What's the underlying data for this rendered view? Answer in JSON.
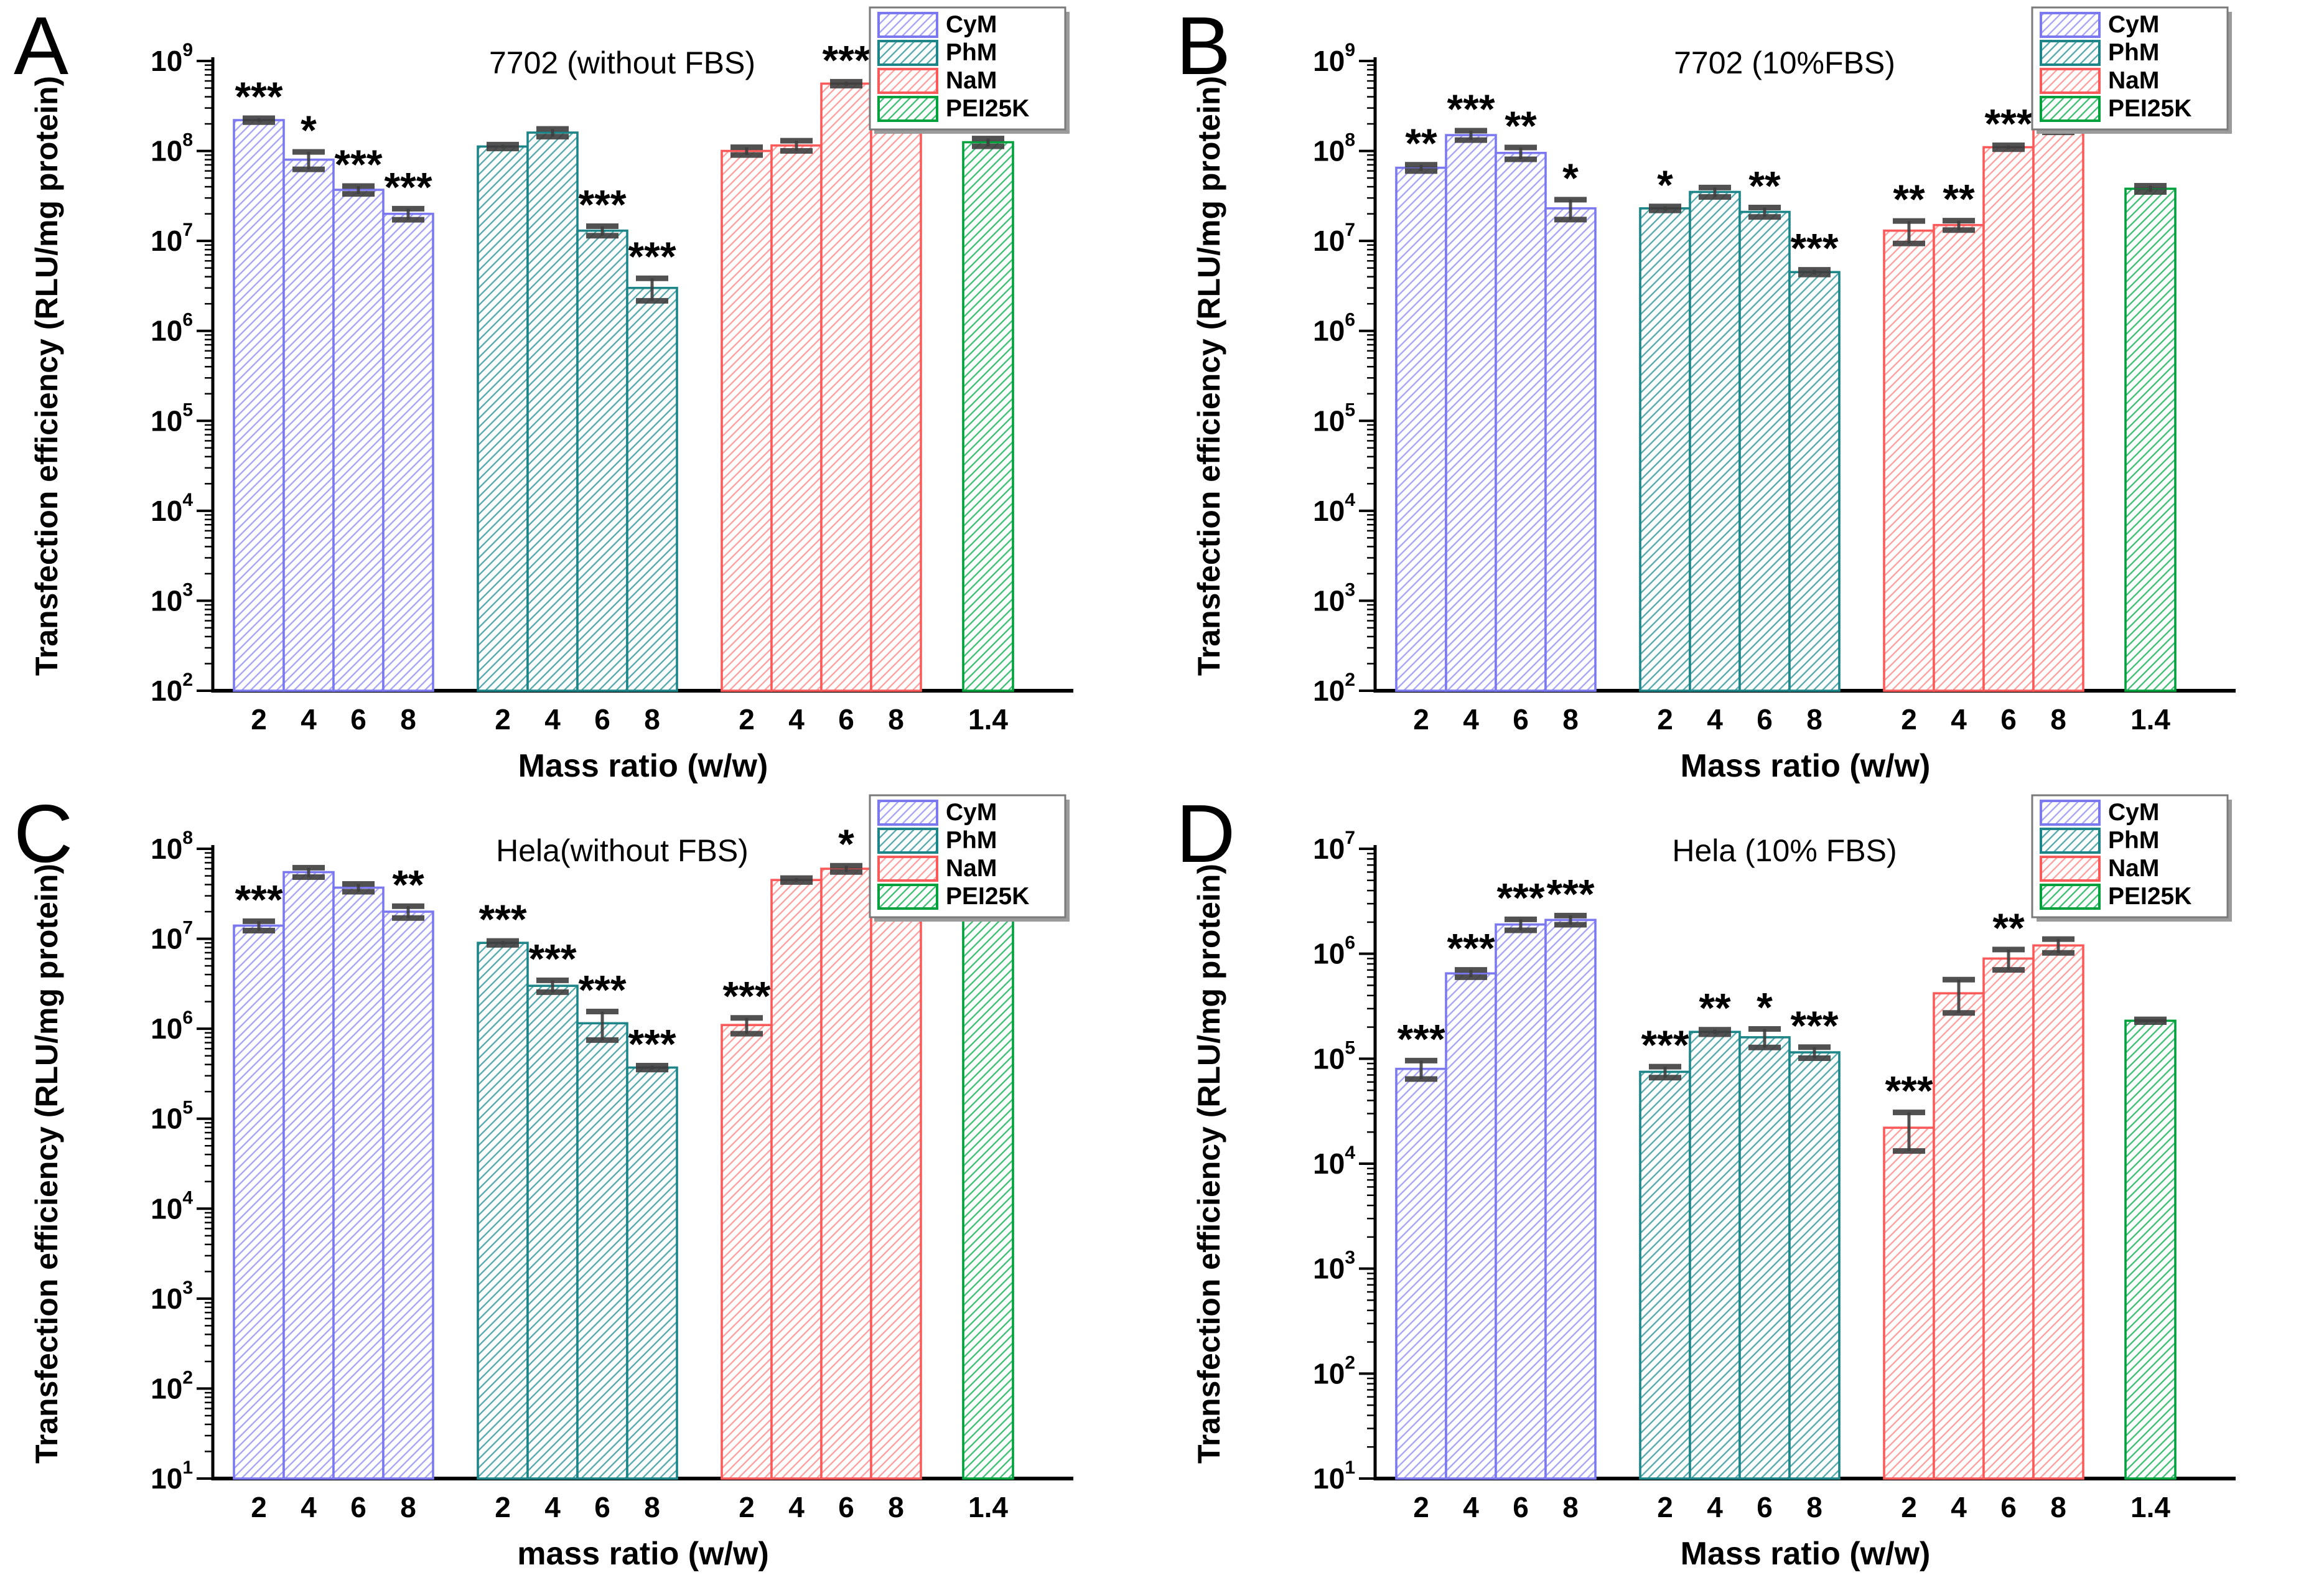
{
  "figure": {
    "description": "Four-panel grouped bar figure of transfection efficiency",
    "star_symbols": {
      "one": "*",
      "two": "**",
      "three": "***"
    },
    "error_bar_color": "#3f3f3f",
    "axis_color": "#000000",
    "legend_border_color": "#7a7a7a",
    "legend_shadow_color": "#9b9b9b"
  },
  "chart_data": [
    {
      "type": "bar",
      "panel": "A",
      "title": "7702 (without FBS)",
      "xlabel": "Mass ratio (w/w)",
      "ylabel": "Transfection efficiency  (RLU/mg protein)",
      "yscale": "log",
      "ylim": [
        100.0,
        1000000000.0
      ],
      "grid": false,
      "legend_position": "top-right",
      "categories": [
        "2",
        "4",
        "6",
        "8"
      ],
      "single_category": "1.4",
      "series": [
        {
          "name": "CyM",
          "color": "#7b78f0",
          "hatch": "#a9a7f6",
          "values": [
            220000000.0,
            80000000.0,
            37000000.0,
            20000000.0
          ],
          "rel_err": [
            0.05,
            0.22,
            0.1,
            0.14
          ],
          "stars": [
            "***",
            "*",
            "***",
            "***"
          ]
        },
        {
          "name": "PhM",
          "color": "#1d8588",
          "hatch": "#5aabad",
          "values": [
            112000000.0,
            160000000.0,
            13000000.0,
            3000000.0
          ],
          "rel_err": [
            0.05,
            0.1,
            0.12,
            0.28
          ],
          "stars": [
            "",
            "",
            "***",
            "***"
          ]
        },
        {
          "name": "NaM",
          "color": "#fb5a5a",
          "hatch": "#fda3a3",
          "values": [
            100000000.0,
            115000000.0,
            560000000.0,
            490000000.0
          ],
          "rel_err": [
            0.1,
            0.13,
            0.05,
            0.06
          ],
          "stars": [
            "",
            "",
            "***",
            "***"
          ]
        },
        {
          "name": "PEI25K",
          "color": "#00a13c",
          "hatch": "#44bf78",
          "values": [
            125000000.0
          ],
          "rel_err": [
            0.1
          ],
          "stars": [
            ""
          ]
        }
      ]
    },
    {
      "type": "bar",
      "panel": "B",
      "title": "7702 (10%FBS)",
      "xlabel": "Mass ratio (w/w)",
      "ylabel": "Transfection efficiency  (RLU/mg protein)",
      "yscale": "log",
      "ylim": [
        100.0,
        1000000000.0
      ],
      "grid": false,
      "legend_position": "top-right",
      "categories": [
        "2",
        "4",
        "6",
        "8"
      ],
      "single_category": "1.4",
      "series": [
        {
          "name": "CyM",
          "color": "#7b78f0",
          "hatch": "#a9a7f6",
          "values": [
            65000000.0,
            150000000.0,
            95000000.0,
            23000000.0
          ],
          "rel_err": [
            0.08,
            0.12,
            0.15,
            0.25
          ],
          "stars": [
            "**",
            "***",
            "**",
            "*"
          ]
        },
        {
          "name": "PhM",
          "color": "#1d8588",
          "hatch": "#5aabad",
          "values": [
            23000000.0,
            35000000.0,
            21000000.0,
            4500000.0
          ],
          "rel_err": [
            0.05,
            0.12,
            0.12,
            0.06
          ],
          "stars": [
            "*",
            "",
            "**",
            "***"
          ]
        },
        {
          "name": "NaM",
          "color": "#fb5a5a",
          "hatch": "#fda3a3",
          "values": [
            13000000.0,
            15000000.0,
            110000000.0,
            175000000.0
          ],
          "rel_err": [
            0.28,
            0.12,
            0.05,
            0.08
          ],
          "stars": [
            "**",
            "**",
            "***",
            "***"
          ]
        },
        {
          "name": "PEI25K",
          "color": "#00a13c",
          "hatch": "#44bf78",
          "values": [
            38000000.0
          ],
          "rel_err": [
            0.08
          ],
          "stars": [
            ""
          ]
        }
      ]
    },
    {
      "type": "bar",
      "panel": "C",
      "title": "Hela(without FBS)",
      "xlabel": "mass ratio (w/w)",
      "ylabel": "Transfection efficiency  (RLU/mg protein)",
      "yscale": "log",
      "ylim": [
        10.0,
        100000000.0
      ],
      "grid": false,
      "legend_position": "top-right",
      "categories": [
        "2",
        "4",
        "6",
        "8"
      ],
      "single_category": "1.4",
      "series": [
        {
          "name": "CyM",
          "color": "#7b78f0",
          "hatch": "#a9a7f6",
          "values": [
            14000000.0,
            55000000.0,
            37000000.0,
            20000000.0
          ],
          "rel_err": [
            0.12,
            0.12,
            0.1,
            0.15
          ],
          "stars": [
            "***",
            "",
            "",
            "**"
          ]
        },
        {
          "name": "PhM",
          "color": "#1d8588",
          "hatch": "#5aabad",
          "values": [
            9000000.0,
            3000000.0,
            1150000.0,
            370000.0
          ],
          "rel_err": [
            0.05,
            0.15,
            0.35,
            0.05
          ],
          "stars": [
            "***",
            "***",
            "***",
            "***"
          ]
        },
        {
          "name": "NaM",
          "color": "#fb5a5a",
          "hatch": "#fda3a3",
          "values": [
            1100000.0,
            45000000.0,
            60000000.0,
            65000000.0
          ],
          "rel_err": [
            0.2,
            0.05,
            0.08,
            0.12
          ],
          "stars": [
            "***",
            "",
            "*",
            "*"
          ]
        },
        {
          "name": "PEI25K",
          "color": "#00a13c",
          "hatch": "#44bf78",
          "values": [
            45000000.0
          ],
          "rel_err": [
            0.08
          ],
          "stars": [
            ""
          ]
        }
      ]
    },
    {
      "type": "bar",
      "panel": "D",
      "title": "Hela (10% FBS)",
      "xlabel": "Mass ratio (w/w)",
      "ylabel": "Transfection efficiency  (RLU/mg protein)",
      "yscale": "log",
      "ylim": [
        10.0,
        10000000.0
      ],
      "grid": false,
      "legend_position": "top-right",
      "categories": [
        "2",
        "4",
        "6",
        "8"
      ],
      "single_category": "1.4",
      "series": [
        {
          "name": "CyM",
          "color": "#7b78f0",
          "hatch": "#a9a7f6",
          "values": [
            80000.0,
            650000.0,
            1900000.0,
            2100000.0
          ],
          "rel_err": [
            0.2,
            0.08,
            0.12,
            0.1
          ],
          "stars": [
            "***",
            "***",
            "***",
            "***"
          ]
        },
        {
          "name": "PhM",
          "color": "#1d8588",
          "hatch": "#5aabad",
          "values": [
            75000.0,
            180000.0,
            160000.0,
            115000.0
          ],
          "rel_err": [
            0.12,
            0.05,
            0.2,
            0.12
          ],
          "stars": [
            "***",
            "**",
            "*",
            "***"
          ]
        },
        {
          "name": "NaM",
          "color": "#fb5a5a",
          "hatch": "#fda3a3",
          "values": [
            22000.0,
            420000.0,
            900000.0,
            1200000.0
          ],
          "rel_err": [
            0.4,
            0.35,
            0.22,
            0.15
          ],
          "stars": [
            "***",
            "",
            "**",
            "**"
          ]
        },
        {
          "name": "PEI25K",
          "color": "#00a13c",
          "hatch": "#44bf78",
          "values": [
            230000.0
          ],
          "rel_err": [
            0.03
          ],
          "stars": [
            ""
          ]
        }
      ]
    }
  ]
}
